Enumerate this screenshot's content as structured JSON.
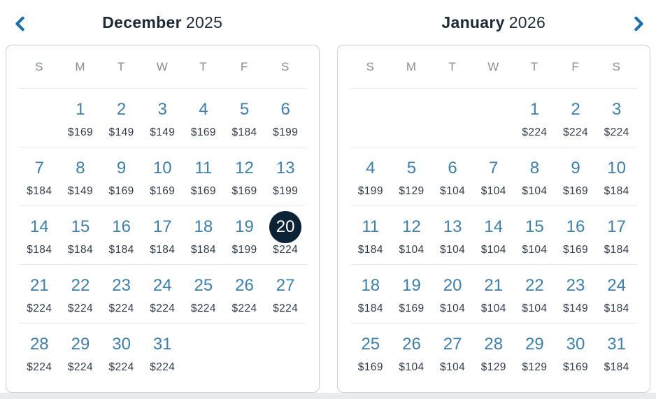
{
  "nav": {
    "prev_icon": "chevron-left",
    "next_icon": "chevron-right"
  },
  "selected": {
    "calendar_index": 0,
    "day": 20,
    "price": "$224"
  },
  "calendars": [
    {
      "month": "December",
      "year": "2025",
      "day_headers": [
        "S",
        "M",
        "T",
        "W",
        "T",
        "F",
        "S"
      ],
      "weeks": [
        [
          null,
          {
            "day": 1,
            "price": "$169"
          },
          {
            "day": 2,
            "price": "$149"
          },
          {
            "day": 3,
            "price": "$149"
          },
          {
            "day": 4,
            "price": "$169"
          },
          {
            "day": 5,
            "price": "$184"
          },
          {
            "day": 6,
            "price": "$199"
          }
        ],
        [
          {
            "day": 7,
            "price": "$184"
          },
          {
            "day": 8,
            "price": "$149"
          },
          {
            "day": 9,
            "price": "$169"
          },
          {
            "day": 10,
            "price": "$169"
          },
          {
            "day": 11,
            "price": "$169"
          },
          {
            "day": 12,
            "price": "$169"
          },
          {
            "day": 13,
            "price": "$199"
          }
        ],
        [
          {
            "day": 14,
            "price": "$184"
          },
          {
            "day": 15,
            "price": "$184"
          },
          {
            "day": 16,
            "price": "$184"
          },
          {
            "day": 17,
            "price": "$184"
          },
          {
            "day": 18,
            "price": "$184"
          },
          {
            "day": 19,
            "price": "$199"
          },
          {
            "day": 20,
            "price": "$224",
            "selected": true
          }
        ],
        [
          {
            "day": 21,
            "price": "$224"
          },
          {
            "day": 22,
            "price": "$224"
          },
          {
            "day": 23,
            "price": "$224"
          },
          {
            "day": 24,
            "price": "$224"
          },
          {
            "day": 25,
            "price": "$224"
          },
          {
            "day": 26,
            "price": "$224"
          },
          {
            "day": 27,
            "price": "$224"
          }
        ],
        [
          {
            "day": 28,
            "price": "$224"
          },
          {
            "day": 29,
            "price": "$224"
          },
          {
            "day": 30,
            "price": "$224"
          },
          {
            "day": 31,
            "price": "$224"
          },
          null,
          null,
          null
        ]
      ]
    },
    {
      "month": "January",
      "year": "2026",
      "day_headers": [
        "S",
        "M",
        "T",
        "W",
        "T",
        "F",
        "S"
      ],
      "weeks": [
        [
          null,
          null,
          null,
          null,
          {
            "day": 1,
            "price": "$224"
          },
          {
            "day": 2,
            "price": "$224"
          },
          {
            "day": 3,
            "price": "$224"
          }
        ],
        [
          {
            "day": 4,
            "price": "$199"
          },
          {
            "day": 5,
            "price": "$129"
          },
          {
            "day": 6,
            "price": "$104"
          },
          {
            "day": 7,
            "price": "$104"
          },
          {
            "day": 8,
            "price": "$104"
          },
          {
            "day": 9,
            "price": "$169"
          },
          {
            "day": 10,
            "price": "$184"
          }
        ],
        [
          {
            "day": 11,
            "price": "$184"
          },
          {
            "day": 12,
            "price": "$104"
          },
          {
            "day": 13,
            "price": "$104"
          },
          {
            "day": 14,
            "price": "$104"
          },
          {
            "day": 15,
            "price": "$104"
          },
          {
            "day": 16,
            "price": "$169"
          },
          {
            "day": 17,
            "price": "$184"
          }
        ],
        [
          {
            "day": 18,
            "price": "$184"
          },
          {
            "day": 19,
            "price": "$169"
          },
          {
            "day": 20,
            "price": "$104"
          },
          {
            "day": 21,
            "price": "$104"
          },
          {
            "day": 22,
            "price": "$104"
          },
          {
            "day": 23,
            "price": "$149"
          },
          {
            "day": 24,
            "price": "$184"
          }
        ],
        [
          {
            "day": 25,
            "price": "$169"
          },
          {
            "day": 26,
            "price": "$104"
          },
          {
            "day": 27,
            "price": "$104"
          },
          {
            "day": 28,
            "price": "$129"
          },
          {
            "day": 29,
            "price": "$129"
          },
          {
            "day": 30,
            "price": "$169"
          },
          {
            "day": 31,
            "price": "$184"
          }
        ]
      ]
    }
  ],
  "colors": {
    "accent_blue": "#1b6fad",
    "date_blue": "#3f7fa8",
    "price_navy": "#303c4b",
    "title_navy": "#1c2936",
    "dow_gray": "#878e95",
    "selected_bg": "#0c2336",
    "selected_text": "#ffffff",
    "panel_border": "#c9cfd6",
    "divider": "#e8eaec",
    "panel_bg": "#ffffff",
    "page_bg": "#ffffff",
    "footer_strip": "#e9ecef"
  }
}
